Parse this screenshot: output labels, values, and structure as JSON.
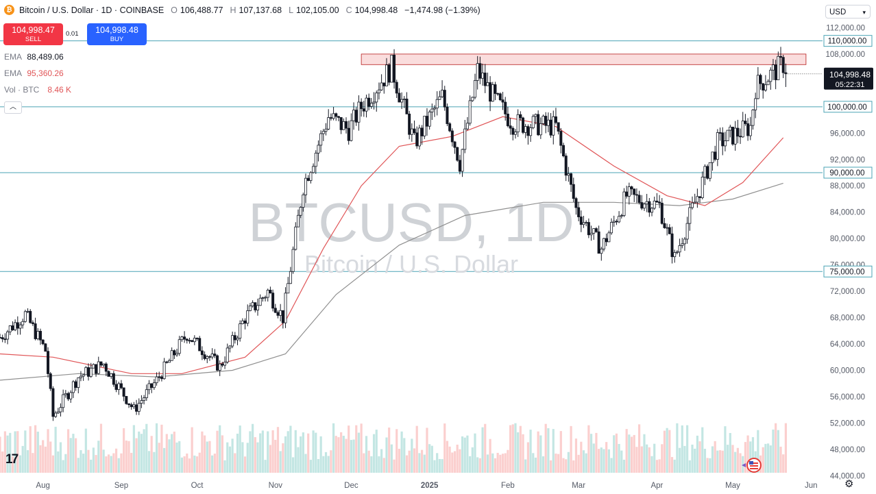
{
  "header": {
    "symbol": "Bitcoin / U.S. Dollar · 1D · COINBASE",
    "open_label": "O",
    "open": "106,488.77",
    "high_label": "H",
    "high": "107,137.68",
    "low_label": "L",
    "low": "102,105.00",
    "close_label": "C",
    "close": "104,998.48",
    "change": "−1,474.98 (−1.39%)"
  },
  "trade": {
    "sell_price": "104,998.47",
    "sell_label": "SELL",
    "spread": "0.01",
    "buy_price": "104,998.48",
    "buy_label": "BUY"
  },
  "legend": {
    "ema1_name": "EMA",
    "ema1_value": "88,489.06",
    "ema2_name": "EMA",
    "ema2_value": "95,360.26",
    "vol_name": "Vol · BTC",
    "vol_value": "8.46 K"
  },
  "currency": "USD",
  "watermark": {
    "main": "BTCUSD, 1D",
    "sub": "Bitcoin / U.S. Dollar"
  },
  "colors": {
    "up": "#26a69a",
    "down": "#ef5350",
    "ema_fast": "#e05456",
    "ema_slow": "#8f8f8f",
    "hline": "#4aa3b5",
    "zone_fill": "#f9d7d7",
    "zone_stroke": "#b71c1c"
  },
  "chart_data": {
    "type": "candlestick",
    "x_labels": [
      "Aug",
      "Sep",
      "Oct",
      "Nov",
      "Dec",
      "2025",
      "Feb",
      "Mar",
      "Apr",
      "May",
      "Jun"
    ],
    "y_ticks": [
      "44,000.00",
      "48,000.00",
      "52,000.00",
      "56,000.00",
      "60,000.00",
      "64,000.00",
      "68,000.00",
      "72,000.00",
      "76,000.00",
      "80,000.00",
      "84,000.00",
      "88,000.00",
      "92,000.00",
      "96,000.00",
      "100,000.00",
      "104,000.00",
      "108,000.00",
      "112,000.00"
    ],
    "y_tick_values": [
      44000,
      48000,
      52000,
      56000,
      60000,
      64000,
      68000,
      72000,
      76000,
      80000,
      84000,
      88000,
      92000,
      96000,
      100000,
      104000,
      108000,
      112000
    ],
    "ylim": [
      43000,
      113500
    ],
    "horizontal_levels": [
      {
        "value": 110000,
        "label": "110,000.00"
      },
      {
        "value": 100000,
        "label": "100,000.00"
      },
      {
        "value": 90000,
        "label": "90,000.00"
      },
      {
        "value": 75000,
        "label": "75,000.00"
      }
    ],
    "resistance_zone": [
      106400,
      108000
    ],
    "last_price": {
      "value": 104998.48,
      "label": "104,998.48",
      "countdown": "05:22:31"
    },
    "price_path": [
      [
        "2024-07-15",
        65000
      ],
      [
        "2024-07-25",
        68500
      ],
      [
        "2024-08-02",
        63000
      ],
      [
        "2024-08-05",
        53000
      ],
      [
        "2024-08-15",
        59000
      ],
      [
        "2024-08-25",
        61000
      ],
      [
        "2024-09-06",
        54000
      ],
      [
        "2024-09-15",
        58500
      ],
      [
        "2024-09-27",
        65500
      ],
      [
        "2024-10-10",
        60500
      ],
      [
        "2024-10-20",
        68000
      ],
      [
        "2024-10-29",
        72000
      ],
      [
        "2024-11-04",
        68000
      ],
      [
        "2024-11-12",
        88000
      ],
      [
        "2024-11-22",
        98500
      ],
      [
        "2024-11-30",
        96500
      ],
      [
        "2024-12-05",
        100000
      ],
      [
        "2024-12-17",
        106000
      ],
      [
        "2024-12-26",
        94500
      ],
      [
        "2025-01-06",
        101500
      ],
      [
        "2025-01-13",
        91500
      ],
      [
        "2025-01-20",
        105500
      ],
      [
        "2025-01-27",
        101000
      ],
      [
        "2025-02-03",
        97500
      ],
      [
        "2025-02-20",
        97000
      ],
      [
        "2025-02-28",
        84500
      ],
      [
        "2025-03-10",
        78500
      ],
      [
        "2025-03-20",
        86500
      ],
      [
        "2025-04-02",
        85000
      ],
      [
        "2025-04-08",
        77000
      ],
      [
        "2025-04-15",
        84500
      ],
      [
        "2025-04-25",
        94500
      ],
      [
        "2025-05-08",
        97000
      ],
      [
        "2025-05-10",
        103000
      ],
      [
        "2025-05-21",
        106500
      ],
      [
        "2025-05-22",
        104998
      ]
    ],
    "ema_fast": [
      [
        "2024-07-15",
        62500
      ],
      [
        "2024-08-05",
        62000
      ],
      [
        "2024-09-05",
        59500
      ],
      [
        "2024-09-25",
        59500
      ],
      [
        "2024-10-20",
        62000
      ],
      [
        "2024-11-05",
        67500
      ],
      [
        "2024-11-20",
        78500
      ],
      [
        "2024-12-05",
        88000
      ],
      [
        "2024-12-20",
        94000
      ],
      [
        "2025-01-10",
        95500
      ],
      [
        "2025-01-30",
        98500
      ],
      [
        "2025-02-20",
        97000
      ],
      [
        "2025-03-15",
        91000
      ],
      [
        "2025-04-05",
        86500
      ],
      [
        "2025-04-20",
        85000
      ],
      [
        "2025-05-05",
        88500
      ],
      [
        "2025-05-21",
        95300
      ]
    ],
    "ema_slow": [
      [
        "2024-07-15",
        58500
      ],
      [
        "2024-08-15",
        59500
      ],
      [
        "2024-09-15",
        59000
      ],
      [
        "2024-10-15",
        60000
      ],
      [
        "2024-11-05",
        62500
      ],
      [
        "2024-11-25",
        71500
      ],
      [
        "2024-12-20",
        79000
      ],
      [
        "2025-01-15",
        83500
      ],
      [
        "2025-02-15",
        85500
      ],
      [
        "2025-03-15",
        85500
      ],
      [
        "2025-04-10",
        85000
      ],
      [
        "2025-05-01",
        86000
      ],
      [
        "2025-05-21",
        88400
      ]
    ]
  }
}
